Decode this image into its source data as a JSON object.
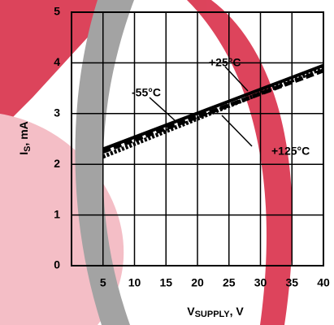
{
  "chart_data": {
    "type": "line",
    "x_label": [
      "V",
      "SUPPLY",
      ", V"
    ],
    "y_label": [
      "I",
      "S",
      ", mA"
    ],
    "x": [
      5,
      40
    ],
    "series": [
      {
        "name": "+25°C",
        "color": "#000000",
        "style": "solid",
        "values": [
          2.3,
          3.95
        ]
      },
      {
        "name": "-55°C",
        "color": "#000000",
        "style": "dashed",
        "values": [
          2.25,
          3.85
        ]
      },
      {
        "name": "+125°C",
        "color": "#000000",
        "style": "dotted",
        "values": [
          2.15,
          3.9
        ]
      }
    ],
    "xlim": [
      0,
      40
    ],
    "xticks": [
      5,
      10,
      15,
      20,
      25,
      30,
      35,
      40
    ],
    "ylim": [
      0,
      5
    ],
    "yticks": [
      0,
      1,
      2,
      3,
      4,
      5
    ],
    "grid": true
  }
}
